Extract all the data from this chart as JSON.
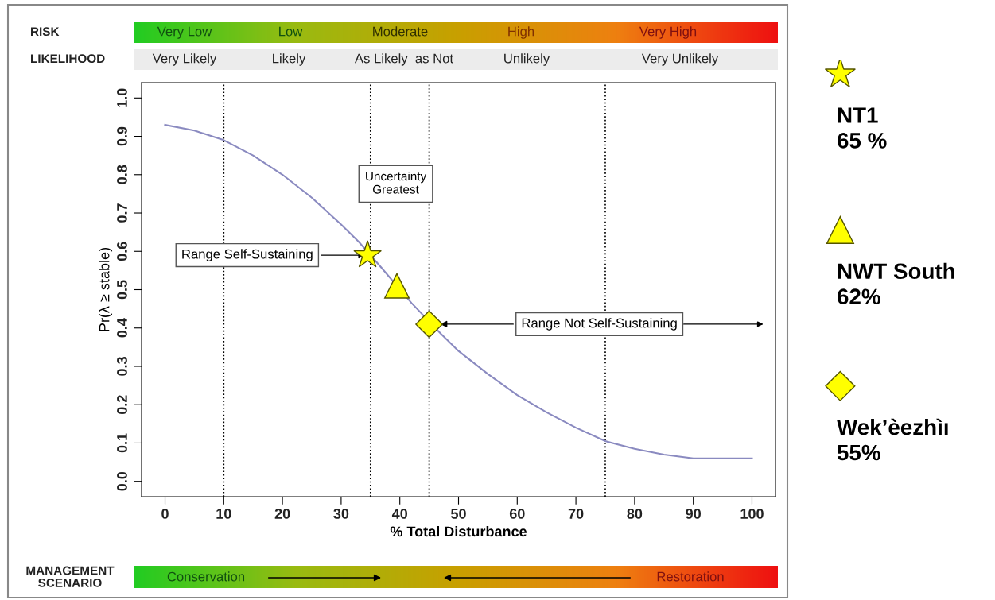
{
  "chart_data": {
    "type": "line",
    "xlabel": "% Total Disturbance",
    "ylabel": "Pr(λ ≥ stable)",
    "xlim": [
      -4,
      104
    ],
    "ylim": [
      -0.04,
      1.04
    ],
    "xticks": [
      0,
      10,
      20,
      30,
      40,
      50,
      60,
      70,
      80,
      90,
      100
    ],
    "yticks": [
      {
        "value": 0,
        "label": "0.0"
      },
      0.1,
      0.2,
      0.3,
      0.4,
      0.5,
      0.6,
      0.7,
      0.8,
      0.9,
      {
        "value": 1,
        "label": "1.0"
      }
    ],
    "grid": false,
    "legend": "right",
    "series": [
      {
        "color": "#8a8ac0",
        "x": [
          0,
          5,
          10,
          15,
          20,
          25,
          30,
          33,
          37,
          42,
          47,
          50,
          55,
          60,
          65,
          70,
          75,
          80,
          85,
          90,
          95,
          100
        ],
        "values": [
          0.93,
          0.915,
          0.89,
          0.85,
          0.8,
          0.74,
          0.67,
          0.625,
          0.555,
          0.465,
          0.385,
          0.34,
          0.28,
          0.225,
          0.18,
          0.14,
          0.105,
          0.085,
          0.07,
          0.06,
          0.06,
          0.06
        ]
      },
      {
        "type": "scatter",
        "name": "NT1\n65 %",
        "marker": "star",
        "color": "#ffff00",
        "x": [
          34.5
        ],
        "values": [
          0.59
        ]
      },
      {
        "type": "scatter",
        "name": "NWT South\n62%",
        "marker": "triangle",
        "color": "#ffff00",
        "x": [
          39.5
        ],
        "values": [
          0.51
        ]
      },
      {
        "type": "scatter",
        "name": "Wek’èezhìı\n55%",
        "marker": "diamond",
        "color": "#ffff00",
        "x": [
          45
        ],
        "values": [
          0.41
        ]
      }
    ],
    "ref_lines": [
      {
        "axis": "x",
        "value": 10,
        "line_style": "dotted",
        "color": "#000000"
      },
      {
        "axis": "x",
        "value": 35,
        "line_style": "dotted",
        "color": "#000000"
      },
      {
        "axis": "x",
        "value": 45,
        "line_style": "dotted",
        "color": "#000000"
      },
      {
        "axis": "x",
        "value": 75,
        "line_style": "dotted",
        "color": "#000000"
      }
    ],
    "annotations": [
      "RISK",
      "Very Low",
      "Low",
      "Moderate",
      "High",
      "Very High",
      "LIKELIHOOD",
      "Very Likely",
      "Likely",
      "As Likely  as Not",
      "Unlikely",
      "Very Unlikely",
      "Uncertainty\nGreatest",
      {
        "text": "Range Self-Sustaining",
        "x": 34.5,
        "y": 0.59
      },
      {
        "text": "Range Not Self-Sustaining",
        "x": 46.5,
        "y": 0.41
      },
      "MANAGEMENT\nSCENARIO",
      "Conservation",
      "Restoration"
    ]
  }
}
